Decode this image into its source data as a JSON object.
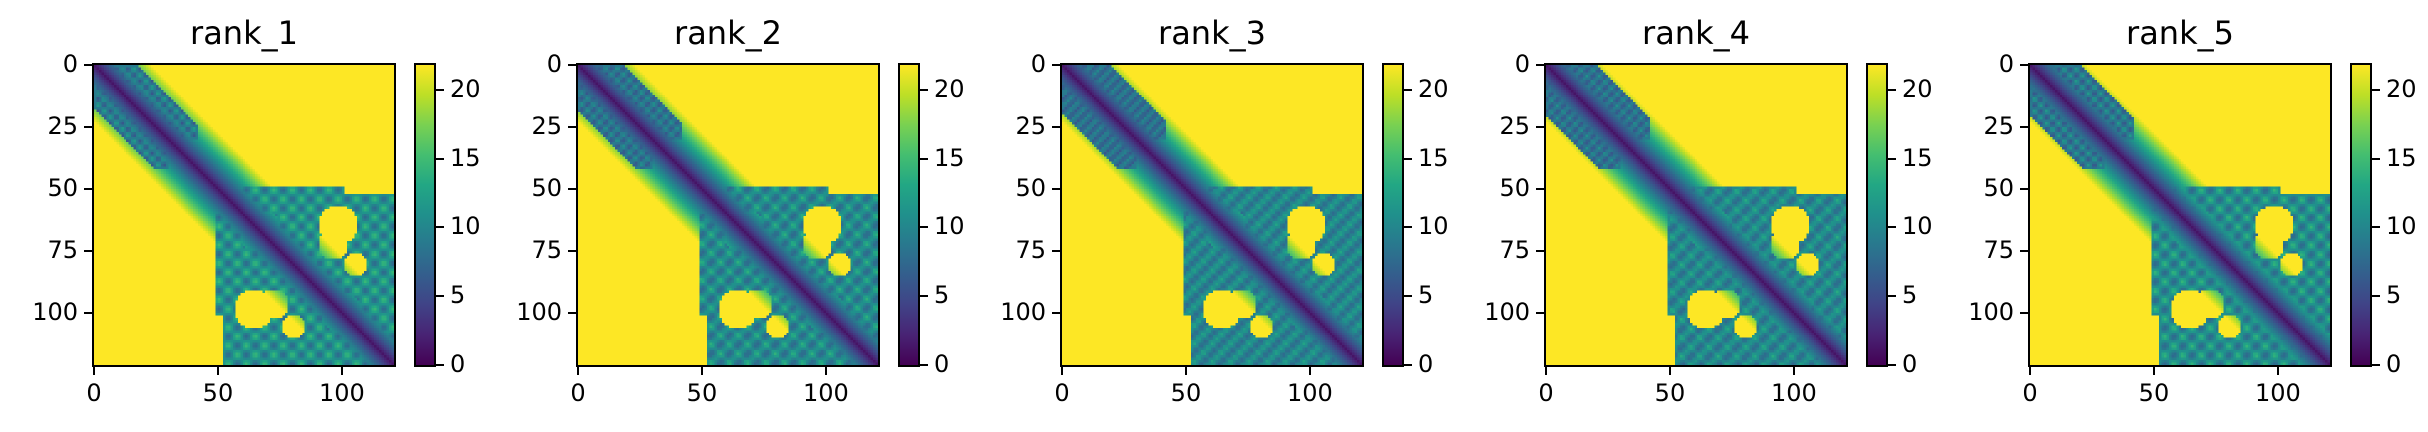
{
  "figure": {
    "panels": [
      {
        "title": "rank_1"
      },
      {
        "title": "rank_2"
      },
      {
        "title": "rank_3"
      },
      {
        "title": "rank_4"
      },
      {
        "title": "rank_5"
      }
    ]
  },
  "chart_data": [
    {
      "type": "heatmap",
      "title": "rank_1",
      "xlabel": "",
      "ylabel": "",
      "xlim": [
        0,
        121
      ],
      "ylim": [
        121,
        0
      ],
      "xticks": [
        0,
        50,
        100
      ],
      "yticks": [
        0,
        25,
        50,
        75,
        100
      ],
      "colorbar": {
        "colormap": "viridis",
        "range": [
          0,
          21.8
        ],
        "ticks": [
          0,
          5,
          10,
          15,
          20
        ]
      },
      "grid": false,
      "colors": {
        "low": "#440154",
        "mid": "#21918c",
        "high": "#fde725"
      }
    },
    {
      "type": "heatmap",
      "title": "rank_2",
      "xlabel": "",
      "ylabel": "",
      "xlim": [
        0,
        121
      ],
      "ylim": [
        121,
        0
      ],
      "xticks": [
        0,
        50,
        100
      ],
      "yticks": [
        0,
        25,
        50,
        75,
        100
      ],
      "colorbar": {
        "colormap": "viridis",
        "range": [
          0,
          21.8
        ],
        "ticks": [
          0,
          5,
          10,
          15,
          20
        ]
      },
      "grid": false,
      "colors": {
        "low": "#440154",
        "mid": "#21918c",
        "high": "#fde725"
      }
    },
    {
      "type": "heatmap",
      "title": "rank_3",
      "xlabel": "",
      "ylabel": "",
      "xlim": [
        0,
        121
      ],
      "ylim": [
        121,
        0
      ],
      "xticks": [
        0,
        50,
        100
      ],
      "yticks": [
        0,
        25,
        50,
        75,
        100
      ],
      "colorbar": {
        "colormap": "viridis",
        "range": [
          0,
          21.8
        ],
        "ticks": [
          0,
          5,
          10,
          15,
          20
        ]
      },
      "grid": false,
      "colors": {
        "low": "#440154",
        "mid": "#21918c",
        "high": "#fde725"
      }
    },
    {
      "type": "heatmap",
      "title": "rank_4",
      "xlabel": "",
      "ylabel": "",
      "xlim": [
        0,
        121
      ],
      "ylim": [
        121,
        0
      ],
      "xticks": [
        0,
        50,
        100
      ],
      "yticks": [
        0,
        25,
        50,
        75,
        100
      ],
      "colorbar": {
        "colormap": "viridis",
        "range": [
          0,
          21.8
        ],
        "ticks": [
          0,
          5,
          10,
          15,
          20
        ]
      },
      "grid": false,
      "colors": {
        "low": "#440154",
        "mid": "#21918c",
        "high": "#fde725"
      }
    },
    {
      "type": "heatmap",
      "title": "rank_5",
      "xlabel": "",
      "ylabel": "",
      "xlim": [
        0,
        121
      ],
      "ylim": [
        121,
        0
      ],
      "xticks": [
        0,
        50,
        100
      ],
      "yticks": [
        0,
        25,
        50,
        75,
        100
      ],
      "colorbar": {
        "colormap": "viridis",
        "range": [
          0,
          21.8
        ],
        "ticks": [
          0,
          5,
          10,
          15,
          20
        ]
      },
      "grid": false,
      "colors": {
        "low": "#440154",
        "mid": "#21918c",
        "high": "#fde725"
      }
    }
  ]
}
